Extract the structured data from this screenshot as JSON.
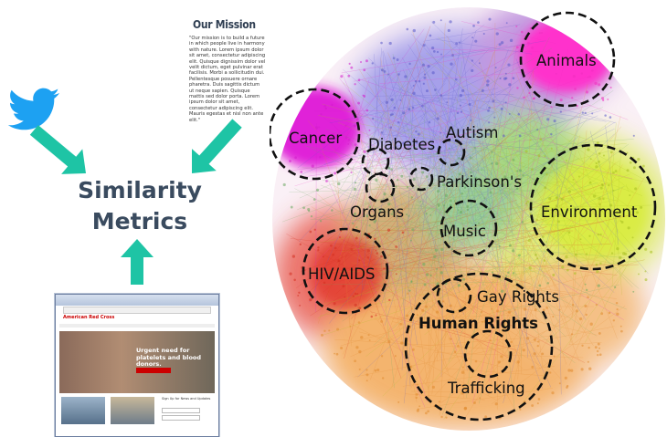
{
  "left": {
    "similarity_title": "Similarity Metrics",
    "mission_title": "Our Mission",
    "mission_text": "\"Our mission is to build a future in which people live in harmony with nature. Lorem ipsum dolor sit amet, consectetur adipiscing elit. Quisque dignissim dolor vel velit dictum, eget pulvinar erat facilisis. Morbi a sollicitudin dui. Pellentesque posuere ornare pharetra. Duis sagittis dictum ut neque sapien. Quisque mattis sed dolor porta. Lorem ipsum dolor sit amet, consectetur adipiscing elit. Mauris egestas et nisl non ante elit.\"",
    "browser": {
      "logo": "American Red Cross",
      "headline": "Urgent need for platelets and blood donors.",
      "button": "Make an Appointment",
      "signup": "Sign Up for News and Updates"
    }
  },
  "clusters": [
    {
      "label": "Animals",
      "bold": false
    },
    {
      "label": "Cancer",
      "bold": false
    },
    {
      "label": "Diabetes",
      "bold": false
    },
    {
      "label": "Autism",
      "bold": false
    },
    {
      "label": "Parkinson's",
      "bold": false
    },
    {
      "label": "Organs",
      "bold": false
    },
    {
      "label": "Environment",
      "bold": false
    },
    {
      "label": "Music",
      "bold": false
    },
    {
      "label": "HIV/AIDS",
      "bold": false
    },
    {
      "label": "Gay Rights",
      "bold": false
    },
    {
      "label": "Human Rights",
      "bold": true
    },
    {
      "label": "Trafficking",
      "bold": false
    }
  ],
  "colors": {
    "arrow": "#1ec4a5",
    "twitter": "#1da1f2",
    "title": "#3a4b5f",
    "cancer": "#e020d8",
    "animals": "#ff33cc",
    "environment": "#d8ec3a",
    "hiv": "#e8322a",
    "human_rights": "#f2a040",
    "center": "#7a6fd8"
  }
}
